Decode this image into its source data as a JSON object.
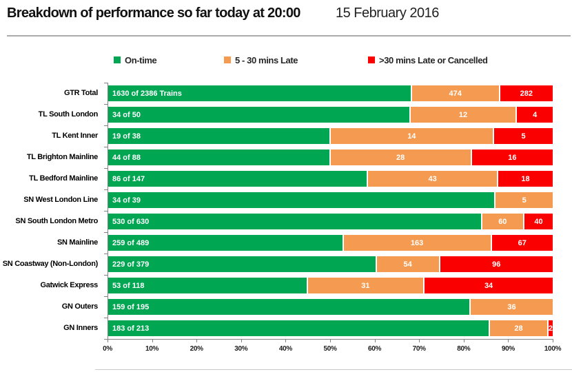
{
  "header": {
    "title": "Breakdown of performance so far today at 20:00",
    "date": "15 February 2016"
  },
  "chart_data": {
    "type": "bar",
    "orientation": "horizontal",
    "stacked": true,
    "title": "Breakdown of performance so far today at 20:00",
    "subtitle": "15 February 2016",
    "xlabel": "",
    "ylabel": "",
    "xlim": [
      0,
      100
    ],
    "x_tick_labels": [
      "0%",
      "10%",
      "20%",
      "30%",
      "40%",
      "50%",
      "60%",
      "70%",
      "80%",
      "90%",
      "100%"
    ],
    "grid": false,
    "legend_position": "top",
    "legend": [
      {
        "key": "on_time",
        "label": "On-time",
        "color": "#00A651"
      },
      {
        "key": "late",
        "label": "5 - 30 mins Late",
        "color": "#F59B51"
      },
      {
        "key": "very_late",
        "label": ">30 mins Late or Cancelled",
        "color": "#FB0000"
      }
    ],
    "rows": [
      {
        "category": "GTR Total",
        "total": 2386,
        "values": {
          "on_time": 1630,
          "late": 474,
          "very_late": 282
        },
        "labels": {
          "on_time": "1630 of 2386 Trains",
          "late": "474",
          "very_late": "282"
        }
      },
      {
        "category": "TL South London",
        "total": 50,
        "values": {
          "on_time": 34,
          "late": 12,
          "very_late": 4
        },
        "labels": {
          "on_time": "34 of 50",
          "late": "12",
          "very_late": "4"
        }
      },
      {
        "category": "TL Kent Inner",
        "total": 38,
        "values": {
          "on_time": 19,
          "late": 14,
          "very_late": 5
        },
        "labels": {
          "on_time": "19 of 38",
          "late": "14",
          "very_late": "5"
        }
      },
      {
        "category": "TL Brighton Mainline",
        "total": 88,
        "values": {
          "on_time": 44,
          "late": 28,
          "very_late": 16
        },
        "labels": {
          "on_time": "44 of 88",
          "late": "28",
          "very_late": "16"
        }
      },
      {
        "category": "TL Bedford Mainline",
        "total": 147,
        "values": {
          "on_time": 86,
          "late": 43,
          "very_late": 18
        },
        "labels": {
          "on_time": "86 of 147",
          "late": "43",
          "very_late": "18"
        }
      },
      {
        "category": "SN West London Line",
        "total": 39,
        "values": {
          "on_time": 34,
          "late": 5,
          "very_late": 0
        },
        "labels": {
          "on_time": "34 of 39",
          "late": "5",
          "very_late": ""
        }
      },
      {
        "category": "SN South London Metro",
        "total": 630,
        "values": {
          "on_time": 530,
          "late": 60,
          "very_late": 40
        },
        "labels": {
          "on_time": "530 of 630",
          "late": "60",
          "very_late": "40"
        }
      },
      {
        "category": "SN Mainline",
        "total": 489,
        "values": {
          "on_time": 259,
          "late": 163,
          "very_late": 67
        },
        "labels": {
          "on_time": "259 of 489",
          "late": "163",
          "very_late": "67"
        }
      },
      {
        "category": "SN Coastway (Non-London)",
        "total": 379,
        "values": {
          "on_time": 229,
          "late": 54,
          "very_late": 96
        },
        "labels": {
          "on_time": "229 of 379",
          "late": "54",
          "very_late": "96"
        }
      },
      {
        "category": "Gatwick Express",
        "total": 118,
        "values": {
          "on_time": 53,
          "late": 31,
          "very_late": 34
        },
        "labels": {
          "on_time": "53 of 118",
          "late": "31",
          "very_late": "34"
        }
      },
      {
        "category": "GN Outers",
        "total": 195,
        "values": {
          "on_time": 159,
          "late": 36,
          "very_late": 0
        },
        "labels": {
          "on_time": "159 of 195",
          "late": "36",
          "very_late": ""
        }
      },
      {
        "category": "GN Inners",
        "total": 213,
        "values": {
          "on_time": 183,
          "late": 28,
          "very_late": 2
        },
        "labels": {
          "on_time": "183 of 213",
          "late": "28",
          "very_late": "2"
        }
      }
    ]
  }
}
